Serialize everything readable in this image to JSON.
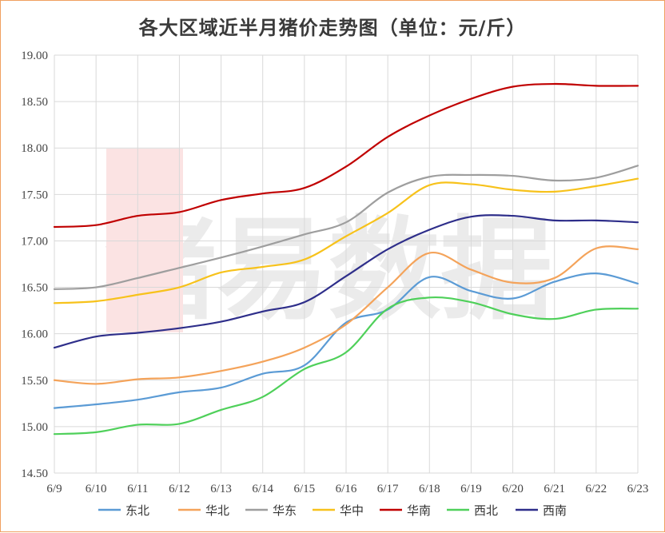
{
  "chart_data": {
    "type": "line",
    "title": "各大区域近半月猪价走势图（单位：元/斤）",
    "watermark": "猪易数据",
    "x": [
      "6/9",
      "6/10",
      "6/11",
      "6/12",
      "6/13",
      "6/14",
      "6/15",
      "6/16",
      "6/17",
      "6/18",
      "6/19",
      "6/20",
      "6/21",
      "6/22",
      "6/23"
    ],
    "ylim": [
      14.5,
      19.0
    ],
    "yticks": [
      "14.50",
      "15.00",
      "15.50",
      "16.00",
      "16.50",
      "17.00",
      "17.50",
      "18.00",
      "18.50",
      "19.00"
    ],
    "grid": true,
    "legend_position": "bottom",
    "series": [
      {
        "name": "东北",
        "color": "#5b9bd5",
        "values": [
          15.2,
          15.24,
          15.29,
          15.37,
          15.42,
          15.57,
          15.66,
          16.12,
          16.26,
          16.61,
          16.46,
          16.38,
          16.56,
          16.65,
          16.54
        ]
      },
      {
        "name": "华北",
        "color": "#f4a35a",
        "values": [
          15.5,
          15.46,
          15.51,
          15.53,
          15.6,
          15.7,
          15.85,
          16.1,
          16.5,
          16.87,
          16.69,
          16.55,
          16.6,
          16.92,
          16.91
        ]
      },
      {
        "name": "华东",
        "color": "#9e9e9e",
        "values": [
          16.48,
          16.5,
          16.6,
          16.71,
          16.82,
          16.94,
          17.07,
          17.2,
          17.52,
          17.69,
          17.71,
          17.7,
          17.65,
          17.68,
          17.81
        ]
      },
      {
        "name": "华中",
        "color": "#f7c21b",
        "values": [
          16.33,
          16.35,
          16.42,
          16.5,
          16.66,
          16.72,
          16.8,
          17.05,
          17.3,
          17.6,
          17.61,
          17.55,
          17.53,
          17.59,
          17.67
        ]
      },
      {
        "name": "华南",
        "color": "#c00000",
        "values": [
          17.15,
          17.17,
          17.27,
          17.31,
          17.44,
          17.51,
          17.57,
          17.8,
          18.12,
          18.35,
          18.53,
          18.66,
          18.69,
          18.67,
          18.67
        ]
      },
      {
        "name": "西北",
        "color": "#4fd05a",
        "values": [
          14.92,
          14.94,
          15.02,
          15.03,
          15.18,
          15.32,
          15.62,
          15.8,
          16.27,
          16.39,
          16.34,
          16.21,
          16.16,
          16.26,
          16.27
        ]
      },
      {
        "name": "西南",
        "color": "#2e2e8a",
        "values": [
          15.85,
          15.97,
          16.01,
          16.06,
          16.13,
          16.24,
          16.34,
          16.62,
          16.91,
          17.12,
          17.26,
          17.27,
          17.22,
          17.22,
          17.2
        ]
      }
    ]
  }
}
